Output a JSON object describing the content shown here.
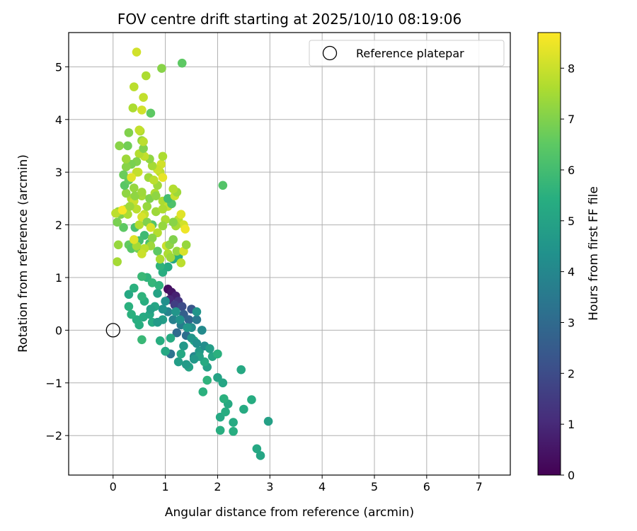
{
  "chart_data": {
    "type": "scatter",
    "title": "FOV centre drift starting at 2025/10/10 08:19:06",
    "xlabel": "Angular distance from reference (arcmin)",
    "ylabel": "Rotation from reference (arcmin)",
    "xlim": [
      -0.85,
      7.6
    ],
    "ylim": [
      -2.75,
      5.65
    ],
    "xticks": [
      0,
      1,
      2,
      3,
      4,
      5,
      6,
      7
    ],
    "yticks": [
      -2,
      -1,
      0,
      1,
      2,
      3,
      4,
      5
    ],
    "grid": true,
    "legend_position": "top-right",
    "legend_label": "Reference platepar",
    "reference_point": {
      "x": 0,
      "y": 0
    },
    "colorbar": {
      "label": "Hours from first FF file",
      "colormap": "viridis",
      "range": [
        0,
        8.7
      ],
      "ticks": [
        0,
        1,
        2,
        3,
        4,
        5,
        6,
        7,
        8
      ]
    },
    "points": [
      [
        1.05,
        0.78,
        0.3
      ],
      [
        1.12,
        0.72,
        0.5
      ],
      [
        1.2,
        0.65,
        0.8
      ],
      [
        1.08,
        0.58,
        1.0
      ],
      [
        1.25,
        0.55,
        1.3
      ],
      [
        1.18,
        0.48,
        1.6
      ],
      [
        1.32,
        0.45,
        2.0
      ],
      [
        1.5,
        0.4,
        2.3
      ],
      [
        1.35,
        0.3,
        2.6
      ],
      [
        1.45,
        0.2,
        2.8
      ],
      [
        1.22,
        -0.05,
        3.0
      ],
      [
        1.4,
        -0.1,
        3.1
      ],
      [
        1.1,
        -0.45,
        3.3
      ],
      [
        1.6,
        0.2,
        3.5
      ],
      [
        1.3,
        0.1,
        3.6
      ],
      [
        1.15,
        0.2,
        3.8
      ],
      [
        1.05,
        0.35,
        3.9
      ],
      [
        1.55,
        -0.5,
        4.0
      ],
      [
        1.7,
        0.0,
        4.1
      ],
      [
        1.5,
        0.05,
        4.2
      ],
      [
        1.0,
        0.55,
        4.3
      ],
      [
        0.95,
        0.4,
        4.4
      ],
      [
        1.6,
        0.35,
        4.5
      ],
      [
        1.35,
        -0.3,
        4.6
      ],
      [
        1.65,
        -0.4,
        4.7
      ],
      [
        1.25,
        -0.6,
        4.8
      ],
      [
        1.8,
        -0.7,
        4.9
      ],
      [
        2.0,
        -0.9,
        5.0
      ],
      [
        1.45,
        -0.7,
        5.0
      ],
      [
        1.9,
        -0.5,
        5.1
      ],
      [
        2.1,
        -1.0,
        5.1
      ],
      [
        2.45,
        -0.75,
        5.2
      ],
      [
        2.05,
        -1.65,
        5.2
      ],
      [
        2.2,
        -1.4,
        5.25
      ],
      [
        2.3,
        -1.75,
        5.3
      ],
      [
        2.5,
        -1.5,
        5.3
      ],
      [
        2.65,
        -1.32,
        5.35
      ],
      [
        2.15,
        -1.55,
        5.35
      ],
      [
        2.05,
        -1.9,
        5.4
      ],
      [
        2.3,
        -1.92,
        5.4
      ],
      [
        2.75,
        -2.25,
        5.2
      ],
      [
        2.82,
        -2.38,
        5.1
      ],
      [
        2.97,
        -1.73,
        4.9
      ],
      [
        2.12,
        -1.3,
        5.5
      ],
      [
        2.0,
        -0.45,
        5.5
      ],
      [
        1.72,
        -1.17,
        5.5
      ],
      [
        1.8,
        -0.95,
        5.6
      ],
      [
        1.55,
        -0.2,
        5.4
      ],
      [
        1.75,
        -0.6,
        5.3
      ],
      [
        1.3,
        -0.45,
        5.2
      ],
      [
        1.0,
        -0.4,
        5.2
      ],
      [
        1.1,
        -0.15,
        5.3
      ],
      [
        0.9,
        -0.2,
        5.4
      ],
      [
        0.75,
        0.15,
        5.3
      ],
      [
        0.5,
        0.1,
        5.4
      ],
      [
        0.45,
        0.2,
        5.4
      ],
      [
        0.35,
        0.3,
        5.5
      ],
      [
        0.3,
        0.45,
        5.5
      ],
      [
        0.55,
        -0.18,
        5.8
      ],
      [
        0.58,
        0.25,
        5.3
      ],
      [
        0.7,
        0.3,
        5.2
      ],
      [
        0.6,
        0.55,
        5.4
      ],
      [
        0.8,
        0.45,
        5.1
      ],
      [
        0.3,
        0.68,
        5.2
      ],
      [
        0.4,
        0.8,
        5.5
      ],
      [
        0.55,
        0.64,
        5.6
      ],
      [
        0.85,
        0.7,
        5.0
      ],
      [
        0.72,
        0.4,
        4.9
      ],
      [
        0.95,
        0.2,
        4.8
      ],
      [
        0.85,
        0.15,
        4.7
      ],
      [
        1.2,
        0.35,
        4.5
      ],
      [
        1.28,
        0.2,
        4.4
      ],
      [
        1.42,
        0.05,
        4.6
      ],
      [
        1.5,
        -0.15,
        4.5
      ],
      [
        1.6,
        -0.25,
        4.3
      ],
      [
        1.75,
        -0.3,
        4.2
      ],
      [
        1.85,
        -0.35,
        4.8
      ],
      [
        1.65,
        -0.5,
        4.9
      ],
      [
        1.55,
        -0.55,
        4.6
      ],
      [
        1.4,
        -0.65,
        4.7
      ],
      [
        0.65,
        1.0,
        5.6
      ],
      [
        0.75,
        0.9,
        5.7
      ],
      [
        0.88,
        0.85,
        5.6
      ],
      [
        0.95,
        1.1,
        5.4
      ],
      [
        0.55,
        1.02,
        5.8
      ],
      [
        1.05,
        1.2,
        5.3
      ],
      [
        1.15,
        1.35,
        5.2
      ],
      [
        1.25,
        1.4,
        5.5
      ],
      [
        0.9,
        1.22,
        5.6
      ],
      [
        0.85,
        1.5,
        6.5
      ],
      [
        0.7,
        1.65,
        6.2
      ],
      [
        0.6,
        1.8,
        5.9
      ],
      [
        0.75,
        2.0,
        6.3
      ],
      [
        0.5,
        1.7,
        6.0
      ],
      [
        0.42,
        1.95,
        6.1
      ],
      [
        0.3,
        1.62,
        6.6
      ],
      [
        0.35,
        1.55,
        6.4
      ],
      [
        0.48,
        1.55,
        6.8
      ],
      [
        0.2,
        1.95,
        6.5
      ],
      [
        0.15,
        2.2,
        7.0
      ],
      [
        0.1,
        2.25,
        7.3
      ],
      [
        0.05,
        2.22,
        7.8
      ],
      [
        0.08,
        2.05,
        6.9
      ],
      [
        0.08,
        1.3,
        7.5
      ],
      [
        0.25,
        2.3,
        7.4
      ],
      [
        0.35,
        2.5,
        7.6
      ],
      [
        0.25,
        2.6,
        7.2
      ],
      [
        0.4,
        2.45,
        8.0
      ],
      [
        0.45,
        2.3,
        7.8
      ],
      [
        0.55,
        2.55,
        7.5
      ],
      [
        0.6,
        2.2,
        7.9
      ],
      [
        0.5,
        2.0,
        7.7
      ],
      [
        0.55,
        2.15,
        8.2
      ],
      [
        0.65,
        2.35,
        7.3
      ],
      [
        0.7,
        2.5,
        7.0
      ],
      [
        0.8,
        2.6,
        7.6
      ],
      [
        0.85,
        2.75,
        7.4
      ],
      [
        0.9,
        3.0,
        7.8
      ],
      [
        0.95,
        2.9,
        8.4
      ],
      [
        0.92,
        3.15,
        8.1
      ],
      [
        0.95,
        3.3,
        7.6
      ],
      [
        0.85,
        3.05,
        8.0
      ],
      [
        0.75,
        3.12,
        7.5
      ],
      [
        0.7,
        3.25,
        7.2
      ],
      [
        0.6,
        3.3,
        7.9
      ],
      [
        0.5,
        3.35,
        7.7
      ],
      [
        0.45,
        3.2,
        7.0
      ],
      [
        0.35,
        3.15,
        6.9
      ],
      [
        0.25,
        3.1,
        7.1
      ],
      [
        0.2,
        2.95,
        6.7
      ],
      [
        0.22,
        2.75,
        6.4
      ],
      [
        0.3,
        2.85,
        6.6
      ],
      [
        0.4,
        2.7,
        7.3
      ],
      [
        0.28,
        3.5,
        6.8
      ],
      [
        0.12,
        3.5,
        7.1
      ],
      [
        0.3,
        3.75,
        7.0
      ],
      [
        0.52,
        3.78,
        7.6
      ],
      [
        0.55,
        3.6,
        7.2
      ],
      [
        0.58,
        3.45,
        7.0
      ],
      [
        0.48,
        3.0,
        8.0
      ],
      [
        0.68,
        2.9,
        7.4
      ],
      [
        0.78,
        2.85,
        7.8
      ],
      [
        0.82,
        2.55,
        7.2
      ],
      [
        0.95,
        2.45,
        7.6
      ],
      [
        1.05,
        2.35,
        7.9
      ],
      [
        1.12,
        2.4,
        6.2
      ],
      [
        1.05,
        2.5,
        6.0
      ],
      [
        1.18,
        2.55,
        8.0
      ],
      [
        1.22,
        2.62,
        7.4
      ],
      [
        1.15,
        2.68,
        7.7
      ],
      [
        1.25,
        2.1,
        7.8
      ],
      [
        1.3,
        2.2,
        8.3
      ],
      [
        1.35,
        2.0,
        8.1
      ],
      [
        1.38,
        1.92,
        8.5
      ],
      [
        1.2,
        1.98,
        7.5
      ],
      [
        1.15,
        2.05,
        7.1
      ],
      [
        1.0,
        2.1,
        7.6
      ],
      [
        0.95,
        1.98,
        7.3
      ],
      [
        0.85,
        1.85,
        7.7
      ],
      [
        0.75,
        1.75,
        7.1
      ],
      [
        0.72,
        1.6,
        7.4
      ],
      [
        0.6,
        1.55,
        7.8
      ],
      [
        0.55,
        1.45,
        8.0
      ],
      [
        0.45,
        1.6,
        7.5
      ],
      [
        0.4,
        1.72,
        8.3
      ],
      [
        1.02,
        1.6,
        8.0
      ],
      [
        1.05,
        1.45,
        7.6
      ],
      [
        1.1,
        1.38,
        7.4
      ],
      [
        1.08,
        1.62,
        7.2
      ],
      [
        1.15,
        1.72,
        7.0
      ],
      [
        1.22,
        1.5,
        7.3
      ],
      [
        1.3,
        1.28,
        7.8
      ],
      [
        1.35,
        1.5,
        8.2
      ],
      [
        1.4,
        1.62,
        7.3
      ],
      [
        0.9,
        1.35,
        7.6
      ],
      [
        0.28,
        2.2,
        7.6
      ],
      [
        0.18,
        2.28,
        8.6
      ],
      [
        0.32,
        2.35,
        7.4
      ],
      [
        0.42,
        2.55,
        7.2
      ],
      [
        0.55,
        2.62,
        7.4
      ],
      [
        0.65,
        2.05,
        7.0
      ],
      [
        0.72,
        1.95,
        8.2
      ],
      [
        0.82,
        2.25,
        7.4
      ],
      [
        0.95,
        2.3,
        7.6
      ],
      [
        0.1,
        1.62,
        7.3
      ],
      [
        0.4,
        4.62,
        7.8
      ],
      [
        0.38,
        4.22,
        7.6
      ],
      [
        0.55,
        4.18,
        8.1
      ],
      [
        0.58,
        4.42,
        7.9
      ],
      [
        0.72,
        4.12,
        6.5
      ],
      [
        0.45,
        5.28,
        8.1
      ],
      [
        0.63,
        4.83,
        7.6
      ],
      [
        0.93,
        4.97,
        7.1
      ],
      [
        1.32,
        5.07,
        6.5
      ],
      [
        2.1,
        2.75,
        6.3
      ],
      [
        0.5,
        3.8,
        7.9
      ],
      [
        0.58,
        3.58,
        7.8
      ],
      [
        0.25,
        3.25,
        7.4
      ],
      [
        0.45,
        3.0,
        7.9
      ],
      [
        0.35,
        2.9,
        8.3
      ]
    ]
  }
}
